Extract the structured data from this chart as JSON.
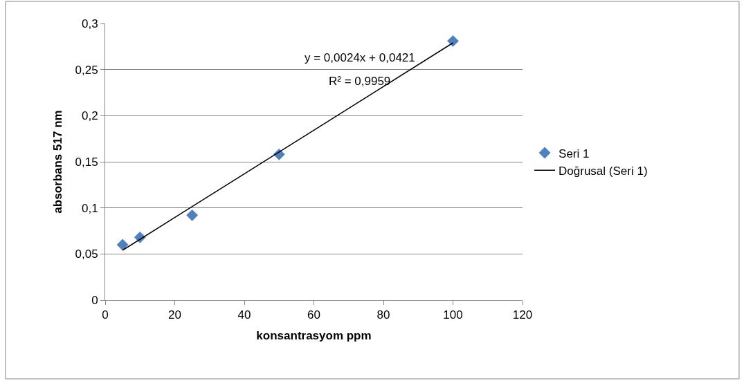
{
  "chart_data": {
    "type": "scatter",
    "xlabel": "konsantrasyom ppm",
    "ylabel": "absorbans 517 nm",
    "xlim": [
      0,
      120
    ],
    "xticks": [
      0,
      20,
      40,
      60,
      80,
      100,
      120
    ],
    "ylim": [
      0,
      0.3
    ],
    "yticks": [
      0,
      {
        "value": 0.05,
        "label": "0,05"
      },
      {
        "value": 0.1,
        "label": "0,1"
      },
      {
        "value": 0.15,
        "label": "0,15"
      },
      {
        "value": 0.2,
        "label": "0,2"
      },
      {
        "value": 0.25,
        "label": "0,25"
      },
      {
        "value": 0.3,
        "label": "0,3"
      }
    ],
    "grid": "y",
    "legend": "right",
    "marker": "diamond",
    "x": [
      5,
      10,
      25,
      50,
      100
    ],
    "series": [
      {
        "name": "Seri 1",
        "color": "#4f81bd",
        "values": [
          0.06,
          0.068,
          0.092,
          0.158,
          0.281
        ]
      },
      {
        "name": "Doğrusal (Seri 1)",
        "type": "line",
        "color": "#000000",
        "x": [
          5,
          100
        ],
        "values": [
          0.054,
          0.279
        ],
        "marker": "none",
        "line_style": "solid"
      }
    ],
    "annotations": [
      "y = 0,0024x + 0,0421",
      "R² = 0,9959"
    ]
  }
}
